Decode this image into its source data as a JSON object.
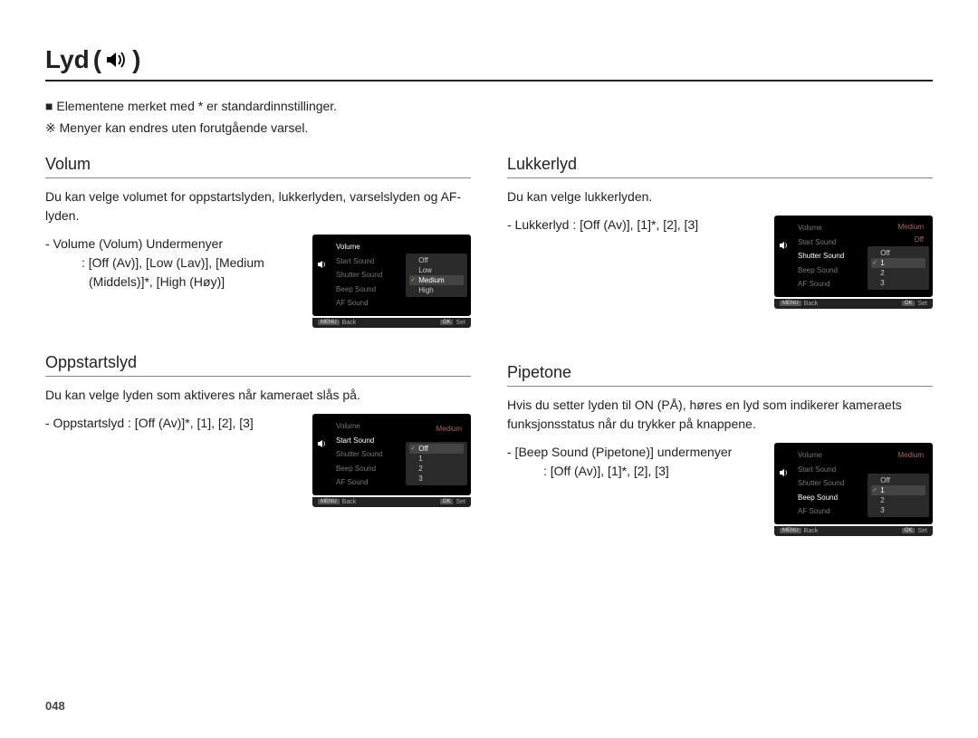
{
  "title": {
    "text": "Lyd",
    "open": "(",
    "close": ")"
  },
  "intro": {
    "line1_prefix": "■",
    "line1": "Elementene merket med * er standardinnstillinger.",
    "line2_prefix": "※",
    "line2": "Menyer kan endres uten forutgående varsel."
  },
  "volum": {
    "heading": "Volum",
    "desc": "Du kan velge volumet for oppstartslyden, lukkerlyden, varselslyden og AF-lyden.",
    "sub_label": "- Volume (Volum) Undermenyer",
    "sub_opts": ": [Off (Av)], [Low (Lav)], [Medium (Middels)]*, [High (Høy)]",
    "ui": {
      "menu": [
        "Volume",
        "Start Sound",
        "Shutter Sound",
        "Beep Sound",
        "AF Sound"
      ],
      "active_idx": 0,
      "right_mode": "options",
      "right_value": "",
      "options": [
        "Off",
        "Low",
        "Medium",
        "High"
      ],
      "selected_idx": 2,
      "checked_idx": 2,
      "foot_back": "Back",
      "foot_back_btn": "MENU",
      "foot_set": "Set",
      "foot_set_btn": "OK"
    }
  },
  "oppstart": {
    "heading": "Oppstartslyd",
    "desc": "Du kan velge lyden som aktiveres når kameraet slås på.",
    "sub_label": "- Oppstartslyd : [Off (Av)]*, [1], [2], [3]",
    "ui": {
      "menu": [
        "Volume",
        "Start Sound",
        "Shutter Sound",
        "Beep Sound",
        "AF Sound"
      ],
      "active_idx": 1,
      "right_mode": "options_with_value",
      "right_value": "Medium",
      "options": [
        "Off",
        "1",
        "2",
        "3"
      ],
      "selected_idx": 0,
      "checked_idx": 0,
      "foot_back": "Back",
      "foot_back_btn": "MENU",
      "foot_set": "Set",
      "foot_set_btn": "OK"
    }
  },
  "lukker": {
    "heading": "Lukkerlyd",
    "desc": "Du kan velge lukkerlyden.",
    "sub_label": "- Lukkerlyd : [Off (Av)], [1]*, [2], [3]",
    "ui": {
      "menu": [
        "Volume",
        "Start Sound",
        "Shutter Sound",
        "Beep Sound",
        "AF Sound"
      ],
      "active_idx": 2,
      "right_mode": "options_with_two_values",
      "right_values": [
        "Medium",
        "Off"
      ],
      "options": [
        "Off",
        "1",
        "2",
        "3"
      ],
      "selected_idx": 1,
      "checked_idx": 1,
      "foot_back": "Back",
      "foot_back_btn": "MENU",
      "foot_set": "Set",
      "foot_set_btn": "OK"
    }
  },
  "pipetone": {
    "heading": "Pipetone",
    "desc": "Hvis du setter lyden til ON (PÅ), høres en lyd som indikerer kameraets funksjonsstatus når du trykker på knappene.",
    "sub_label": "- [Beep Sound (Pipetone)] undermenyer",
    "sub_opts": ": [Off (Av)], [1]*, [2], [3]",
    "ui": {
      "menu": [
        "Volume",
        "Start Sound",
        "Shutter Sound",
        "Beep Sound",
        "AF Sound"
      ],
      "active_idx": 3,
      "right_mode": "options_with_value_row3",
      "right_values": [
        "Medium",
        "",
        ""
      ],
      "options": [
        "Off",
        "1",
        "2",
        "3"
      ],
      "selected_idx": 1,
      "checked_idx": 1,
      "foot_back": "Back",
      "foot_back_btn": "MENU",
      "foot_set": "Set",
      "foot_set_btn": "OK"
    }
  },
  "page_number": "048",
  "colors": {
    "text": "#222222",
    "rule": "#888888",
    "ui_bg": "#000000",
    "ui_text_dim": "#777777",
    "ui_text": "#cccccc",
    "ui_sel_bg": "#444444",
    "ui_val": "#a66"
  }
}
